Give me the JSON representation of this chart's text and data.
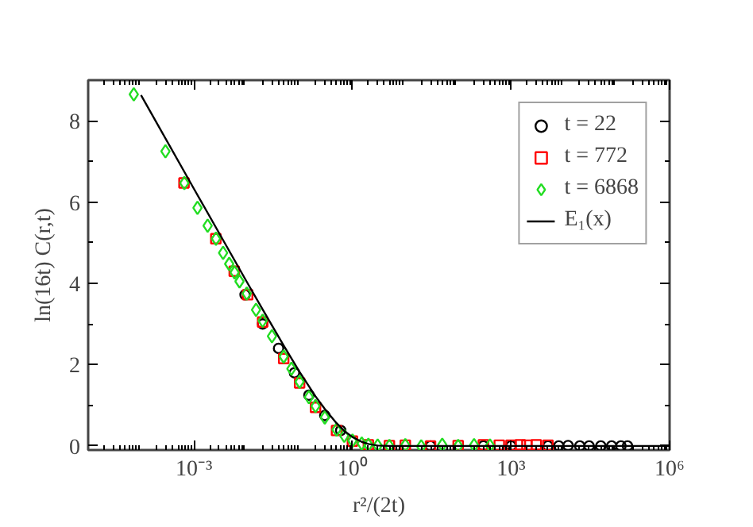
{
  "chart_data": {
    "type": "scatter",
    "xlabel": "r²/(2t)",
    "ylabel": "ln(16t) C(r,t)",
    "log": "x",
    "grid": false,
    "legend": "top right",
    "xlim": [
      1e-05,
      1000000
    ],
    "ylim": [
      -0.1,
      9
    ],
    "xticks": [
      {
        "value": 0.001,
        "label": "10⁻³"
      },
      {
        "value": 1,
        "label": "10⁰"
      },
      {
        "value": 1000,
        "label": "10³"
      },
      {
        "value": 1000000,
        "label": "10⁶"
      }
    ],
    "yticks": [
      0,
      2,
      4,
      6,
      8
    ],
    "series": [
      {
        "name": "t = 22",
        "color": "#000000",
        "marker": "circle",
        "x": [
          0.0093,
          0.02,
          0.04,
          0.08,
          0.15,
          0.3,
          0.6,
          1,
          2,
          5,
          10,
          30,
          100,
          300,
          1000,
          3000,
          5000,
          8000,
          12000,
          20000,
          30000,
          50000,
          80000,
          120000,
          160000
        ],
        "values": [
          3.72,
          3.0,
          2.4,
          1.8,
          1.25,
          0.75,
          0.38,
          null,
          null,
          null,
          null,
          0.0,
          null,
          0.0,
          0.0,
          null,
          0.0,
          0.0,
          0.01,
          0.0,
          0.0,
          0.0,
          0.0,
          0.0,
          0.0
        ]
      },
      {
        "name": "t = 772",
        "color": "#ff0000",
        "marker": "square",
        "x": [
          0.00065,
          0.0026,
          0.0058,
          0.0104,
          0.02,
          0.05,
          0.1,
          0.2,
          0.5,
          1,
          2,
          5,
          10,
          30,
          100,
          300,
          600,
          1000,
          1500,
          2000,
          3000,
          4000,
          5000
        ],
        "values": [
          6.47,
          5.1,
          4.3,
          3.72,
          3.05,
          2.15,
          1.55,
          0.95,
          0.38,
          0.12,
          0.03,
          0.01,
          0.02,
          0.0,
          0.01,
          0.03,
          0.02,
          0.02,
          0.03,
          0.02,
          0.03,
          null,
          0.02
        ]
      },
      {
        "name": "t = 6868",
        "color": "#22dd22",
        "marker": "diamond",
        "x": [
          7.3e-05,
          0.00029,
          0.00066,
          0.00117,
          0.00182,
          0.00262,
          0.00357,
          0.00466,
          0.0059,
          0.0073,
          0.01,
          0.015,
          0.02,
          0.03,
          0.05,
          0.07,
          0.1,
          0.15,
          0.2,
          0.3,
          0.5,
          0.7,
          1,
          1.5,
          2,
          3,
          5,
          10,
          20,
          50,
          100,
          200,
          400
        ],
        "values": [
          8.65,
          7.25,
          6.47,
          5.86,
          5.42,
          5.1,
          4.75,
          4.48,
          4.27,
          4.05,
          3.75,
          3.35,
          3.08,
          2.7,
          2.2,
          1.9,
          1.58,
          1.2,
          0.98,
          0.7,
          0.4,
          0.25,
          0.13,
          0.06,
          0.03,
          0.01,
          0.0,
          0.02,
          -0.01,
          0.03,
          0.0,
          0.02,
          0.01
        ]
      },
      {
        "name": "E₁(x)",
        "color": "#000000",
        "type": "line",
        "x": [
          0.0001,
          0.001,
          0.01,
          0.02,
          0.05,
          0.1,
          0.2,
          0.3,
          0.5,
          0.7,
          1,
          1.5,
          2,
          3,
          5,
          10,
          100,
          1000,
          10000,
          100000,
          1000000
        ],
        "values": [
          8.63,
          6.33,
          4.04,
          3.36,
          2.47,
          1.82,
          1.22,
          0.91,
          0.56,
          0.37,
          0.22,
          0.1,
          0.05,
          0.01,
          0.0,
          0.0,
          0.0,
          0.0,
          0.0,
          0.0,
          0.0
        ]
      }
    ]
  }
}
